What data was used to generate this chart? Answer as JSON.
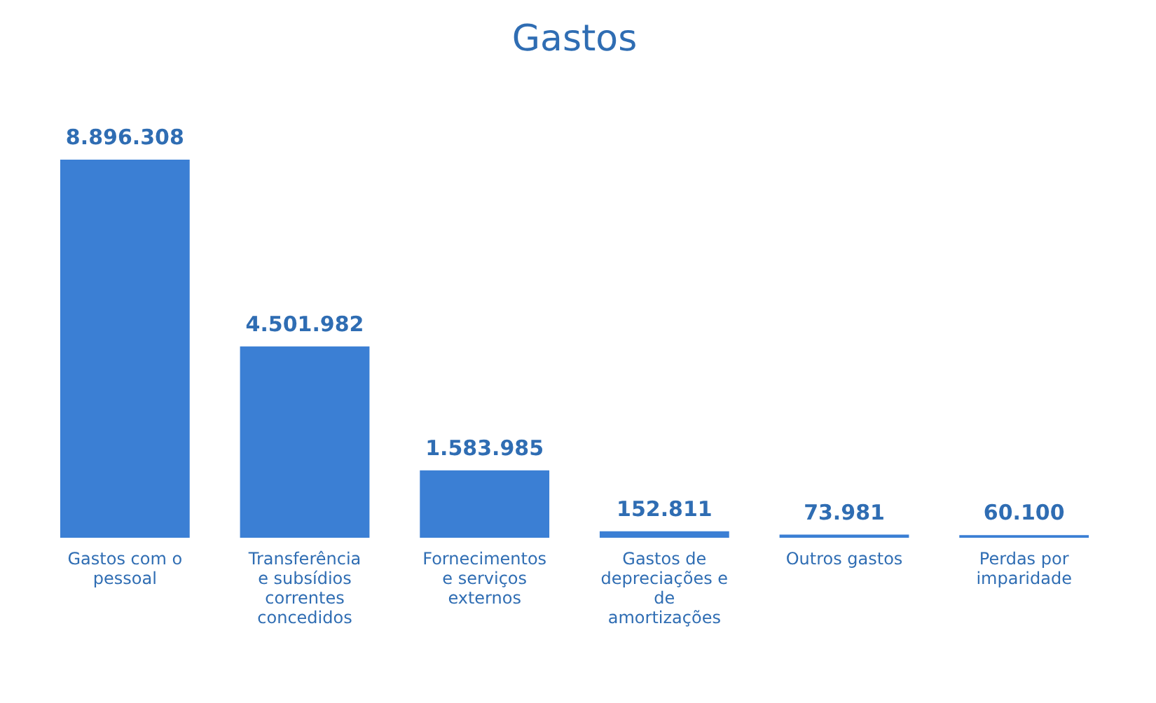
{
  "chart_data": {
    "type": "bar",
    "title": "Gastos",
    "categories": [
      "Gastos com o pessoal",
      "Transferência e subsídios correntes concedidos",
      "Fornecimentos e serviços externos",
      "Gastos de depreciações e de amortizações",
      "Outros gastos",
      "Perdas por imparidade"
    ],
    "values": [
      8896308,
      4501982,
      1583985,
      152811,
      73981,
      60100
    ],
    "value_labels": [
      "8.896.308",
      "4.501.982",
      "1.583.985",
      "152.811",
      "73.981",
      "60.100"
    ],
    "color": "#3b7fd4"
  }
}
